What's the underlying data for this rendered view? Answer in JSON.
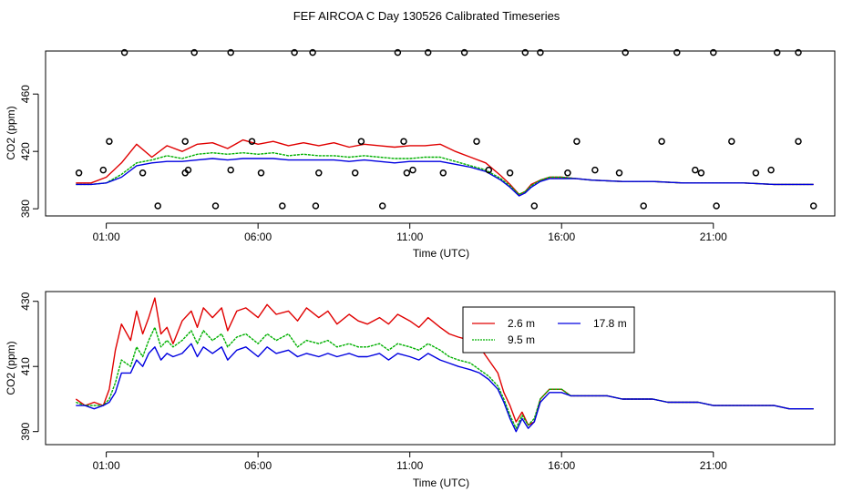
{
  "title": "FEF AIRCOA C  Day 130526  Calibrated Timeseries",
  "colors": {
    "s1": "#e00000",
    "s2": "#00b000",
    "s3": "#0000e0",
    "points": "#000000",
    "axis": "#000000"
  },
  "chart_data": [
    {
      "type": "scatter+line",
      "xlabel": "Time (UTC)",
      "ylabel": "CO2 (ppm)",
      "xlim": [
        -1.0,
        25.0
      ],
      "ylim": [
        375,
        490
      ],
      "xticks": [
        1,
        6,
        11,
        16,
        21
      ],
      "xtick_labels": [
        "01:00",
        "06:00",
        "11:00",
        "16:00",
        "21:00"
      ],
      "yticks": [
        380,
        420,
        460
      ],
      "ytick_labels": [
        "380",
        "420",
        "460"
      ],
      "points": {
        "name": "calibration samples",
        "marker": "open circle",
        "x": [
          1.1,
          3.6,
          5.8,
          9.4,
          10.8,
          13.2,
          16.5,
          19.3,
          21.6,
          23.8,
          0.9,
          3.7,
          5.1,
          11.1,
          13.6,
          17.1,
          20.4,
          22.9,
          2.7,
          4.6,
          6.8,
          7.9,
          10.1,
          15.1,
          18.7,
          21.1,
          24.3,
          0.1,
          2.2,
          3.6,
          6.1,
          8.0,
          9.2,
          10.9,
          12.1,
          14.3,
          16.2,
          17.9,
          20.6,
          22.4,
          1.6,
          3.9,
          5.1,
          7.2,
          7.8,
          10.6,
          11.6,
          12.8,
          14.8,
          15.3,
          18.1,
          19.8,
          21.0,
          23.1,
          23.8
        ],
        "y": [
          427,
          427,
          427,
          427,
          427,
          427,
          427,
          427,
          427,
          427,
          407,
          407,
          407,
          407,
          407,
          407,
          407,
          407,
          382,
          382,
          382,
          382,
          382,
          382,
          382,
          382,
          382,
          405,
          405,
          405,
          405,
          405,
          405,
          405,
          405,
          405,
          405,
          405,
          405,
          405,
          489,
          489,
          489,
          489,
          489,
          489,
          489,
          489,
          489,
          489,
          489,
          489,
          489,
          489,
          489
        ]
      },
      "series": [
        {
          "name": "2.6 m",
          "color": "#e00000",
          "x": [
            0.0,
            0.5,
            1.0,
            1.5,
            2.0,
            2.5,
            3.0,
            3.5,
            4.0,
            4.5,
            5.0,
            5.5,
            6.0,
            6.5,
            7.0,
            7.5,
            8.0,
            8.5,
            9.0,
            9.5,
            10.0,
            10.5,
            11.0,
            11.5,
            12.0,
            12.5,
            13.0,
            13.5,
            14.0,
            14.3,
            14.6,
            14.8,
            15.0,
            15.3,
            15.6,
            16.0,
            16.5,
            17.0,
            18.0,
            19.0,
            20.0,
            21.0,
            22.0,
            23.0,
            24.0,
            24.3
          ],
          "y": [
            398,
            398,
            402,
            412,
            425,
            416,
            424,
            420,
            425,
            426,
            422,
            428,
            425,
            427,
            424,
            426,
            424,
            426,
            423,
            425,
            424,
            423,
            424,
            424,
            425,
            420,
            416,
            412,
            403,
            397,
            390,
            392,
            397,
            400,
            402,
            402,
            401,
            400,
            399,
            399,
            398,
            398,
            398,
            397,
            397,
            397
          ]
        },
        {
          "name": "9.5 m",
          "color": "#00b000",
          "x": [
            0.0,
            0.5,
            1.0,
            1.5,
            2.0,
            2.5,
            3.0,
            3.5,
            4.0,
            4.5,
            5.0,
            5.5,
            6.0,
            6.5,
            7.0,
            7.5,
            8.0,
            8.5,
            9.0,
            9.5,
            10.0,
            10.5,
            11.0,
            11.5,
            12.0,
            12.5,
            13.0,
            13.5,
            14.0,
            14.3,
            14.6,
            14.8,
            15.0,
            15.3,
            15.6,
            16.0,
            16.5,
            17.0,
            18.0,
            19.0,
            20.0,
            21.0,
            22.0,
            23.0,
            24.0,
            24.3
          ],
          "y": [
            397,
            397,
            398,
            404,
            412,
            414,
            417,
            415,
            418,
            419,
            418,
            419,
            418,
            419,
            417,
            418,
            417,
            417,
            416,
            417,
            416,
            415,
            415,
            416,
            416,
            413,
            410,
            407,
            401,
            396,
            390,
            392,
            396,
            400,
            402,
            402,
            401,
            400,
            399,
            399,
            398,
            398,
            398,
            397,
            397,
            397
          ]
        },
        {
          "name": "17.8 m",
          "color": "#0000e0",
          "x": [
            0.0,
            0.5,
            1.0,
            1.5,
            2.0,
            2.5,
            3.0,
            3.5,
            4.0,
            4.5,
            5.0,
            5.5,
            6.0,
            6.5,
            7.0,
            7.5,
            8.0,
            8.5,
            9.0,
            9.5,
            10.0,
            10.5,
            11.0,
            11.5,
            12.0,
            12.5,
            13.0,
            13.5,
            14.0,
            14.3,
            14.6,
            14.8,
            15.0,
            15.3,
            15.6,
            16.0,
            16.5,
            17.0,
            18.0,
            19.0,
            20.0,
            21.0,
            22.0,
            23.0,
            24.0,
            24.3
          ],
          "y": [
            397,
            397,
            398,
            402,
            410,
            412,
            413,
            413,
            414,
            415,
            414,
            415,
            415,
            415,
            414,
            414,
            414,
            414,
            413,
            414,
            413,
            412,
            413,
            413,
            413,
            411,
            409,
            406,
            400,
            395,
            389,
            391,
            395,
            399,
            401,
            401,
            401,
            400,
            399,
            399,
            398,
            398,
            398,
            397,
            397,
            397
          ]
        }
      ]
    },
    {
      "type": "line",
      "xlabel": "Time (UTC)",
      "ylabel": "CO2 (ppm)",
      "xlim": [
        -1.0,
        25.0
      ],
      "ylim": [
        386,
        433
      ],
      "xticks": [
        1,
        6,
        11,
        16,
        21
      ],
      "xtick_labels": [
        "01:00",
        "06:00",
        "11:00",
        "16:00",
        "21:00"
      ],
      "yticks": [
        390,
        410,
        430
      ],
      "ytick_labels": [
        "390",
        "410",
        "430"
      ],
      "legend": {
        "position": "top-right",
        "entries": [
          "2.6 m",
          "9.5 m",
          "17.8 m"
        ]
      },
      "series": [
        {
          "name": "2.6 m",
          "color": "#e00000",
          "x": [
            0.0,
            0.3,
            0.6,
            0.9,
            1.1,
            1.3,
            1.5,
            1.8,
            2.0,
            2.2,
            2.4,
            2.6,
            2.8,
            3.0,
            3.2,
            3.5,
            3.8,
            4.0,
            4.2,
            4.5,
            4.8,
            5.0,
            5.3,
            5.6,
            6.0,
            6.3,
            6.6,
            7.0,
            7.3,
            7.6,
            8.0,
            8.3,
            8.6,
            9.0,
            9.3,
            9.6,
            10.0,
            10.3,
            10.6,
            11.0,
            11.3,
            11.6,
            12.0,
            12.3,
            12.6,
            13.0,
            13.3,
            13.6,
            13.9,
            14.1,
            14.3,
            14.5,
            14.7,
            14.9,
            15.1,
            15.3,
            15.6,
            16.0,
            16.3,
            16.6,
            17.0,
            17.5,
            18.0,
            18.5,
            19.0,
            19.5,
            20.0,
            20.5,
            21.0,
            21.5,
            22.0,
            22.5,
            23.0,
            23.5,
            24.0,
            24.3
          ],
          "y": [
            400,
            398,
            399,
            398,
            403,
            415,
            423,
            418,
            427,
            420,
            425,
            431,
            420,
            422,
            417,
            424,
            427,
            422,
            428,
            425,
            428,
            421,
            427,
            428,
            425,
            429,
            426,
            427,
            424,
            428,
            425,
            427,
            423,
            426,
            424,
            423,
            425,
            423,
            426,
            424,
            422,
            425,
            422,
            420,
            419,
            418,
            416,
            412,
            408,
            402,
            398,
            393,
            396,
            392,
            393,
            400,
            403,
            403,
            401,
            401,
            401,
            401,
            400,
            400,
            400,
            399,
            399,
            399,
            398,
            398,
            398,
            398,
            398,
            397,
            397,
            397
          ]
        },
        {
          "name": "9.5 m",
          "color": "#00b000",
          "x": [
            0.0,
            0.3,
            0.6,
            0.9,
            1.1,
            1.3,
            1.5,
            1.8,
            2.0,
            2.2,
            2.4,
            2.6,
            2.8,
            3.0,
            3.2,
            3.5,
            3.8,
            4.0,
            4.2,
            4.5,
            4.8,
            5.0,
            5.3,
            5.6,
            6.0,
            6.3,
            6.6,
            7.0,
            7.3,
            7.6,
            8.0,
            8.3,
            8.6,
            9.0,
            9.3,
            9.6,
            10.0,
            10.3,
            10.6,
            11.0,
            11.3,
            11.6,
            12.0,
            12.3,
            12.6,
            13.0,
            13.3,
            13.6,
            13.9,
            14.1,
            14.3,
            14.5,
            14.7,
            14.9,
            15.1,
            15.3,
            15.6,
            16.0,
            16.3,
            16.6,
            17.0,
            17.5,
            18.0,
            18.5,
            19.0,
            19.5,
            20.0,
            20.5,
            21.0,
            21.5,
            22.0,
            22.5,
            23.0,
            23.5,
            24.0,
            24.3
          ],
          "y": [
            399,
            398,
            398,
            398,
            400,
            405,
            412,
            410,
            416,
            413,
            418,
            422,
            416,
            418,
            416,
            418,
            421,
            417,
            421,
            418,
            420,
            416,
            419,
            420,
            417,
            420,
            418,
            420,
            416,
            418,
            417,
            418,
            416,
            417,
            416,
            416,
            417,
            415,
            417,
            416,
            415,
            417,
            415,
            413,
            412,
            411,
            409,
            407,
            404,
            400,
            395,
            391,
            395,
            392,
            394,
            400,
            403,
            403,
            401,
            401,
            401,
            401,
            400,
            400,
            400,
            399,
            399,
            399,
            398,
            398,
            398,
            398,
            398,
            397,
            397,
            397
          ]
        },
        {
          "name": "17.8 m",
          "color": "#0000e0",
          "x": [
            0.0,
            0.3,
            0.6,
            0.9,
            1.1,
            1.3,
            1.5,
            1.8,
            2.0,
            2.2,
            2.4,
            2.6,
            2.8,
            3.0,
            3.2,
            3.5,
            3.8,
            4.0,
            4.2,
            4.5,
            4.8,
            5.0,
            5.3,
            5.6,
            6.0,
            6.3,
            6.6,
            7.0,
            7.3,
            7.6,
            8.0,
            8.3,
            8.6,
            9.0,
            9.3,
            9.6,
            10.0,
            10.3,
            10.6,
            11.0,
            11.3,
            11.6,
            12.0,
            12.3,
            12.6,
            13.0,
            13.3,
            13.6,
            13.9,
            14.1,
            14.3,
            14.5,
            14.7,
            14.9,
            15.1,
            15.3,
            15.6,
            16.0,
            16.3,
            16.6,
            17.0,
            17.5,
            18.0,
            18.5,
            19.0,
            19.5,
            20.0,
            20.5,
            21.0,
            21.5,
            22.0,
            22.5,
            23.0,
            23.5,
            24.0,
            24.3
          ],
          "y": [
            398,
            398,
            397,
            398,
            399,
            402,
            408,
            408,
            412,
            410,
            414,
            416,
            412,
            414,
            413,
            414,
            417,
            413,
            416,
            414,
            416,
            412,
            415,
            416,
            413,
            416,
            414,
            415,
            413,
            414,
            413,
            414,
            413,
            414,
            413,
            413,
            414,
            412,
            414,
            413,
            412,
            414,
            412,
            411,
            410,
            409,
            408,
            406,
            403,
            399,
            394,
            390,
            394,
            391,
            393,
            399,
            402,
            402,
            401,
            401,
            401,
            401,
            400,
            400,
            400,
            399,
            399,
            399,
            398,
            398,
            398,
            398,
            398,
            397,
            397,
            397
          ]
        }
      ]
    }
  ]
}
